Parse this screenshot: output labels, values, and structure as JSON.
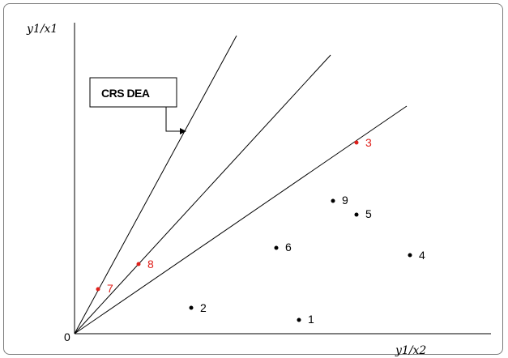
{
  "diagram": {
    "y_axis_label": "y1/x1",
    "x_axis_label": "y1/x2",
    "origin_label": "0",
    "box_label": "CRS DEA",
    "colors": {
      "efficient": "#e0201b",
      "normal": "#000000"
    },
    "points": [
      {
        "label": "1",
        "efficient": false
      },
      {
        "label": "2",
        "efficient": false
      },
      {
        "label": "3",
        "efficient": true
      },
      {
        "label": "4",
        "efficient": false
      },
      {
        "label": "5",
        "efficient": false
      },
      {
        "label": "6",
        "efficient": false
      },
      {
        "label": "7",
        "efficient": true
      },
      {
        "label": "8",
        "efficient": true
      },
      {
        "label": "9",
        "efficient": false
      }
    ]
  }
}
